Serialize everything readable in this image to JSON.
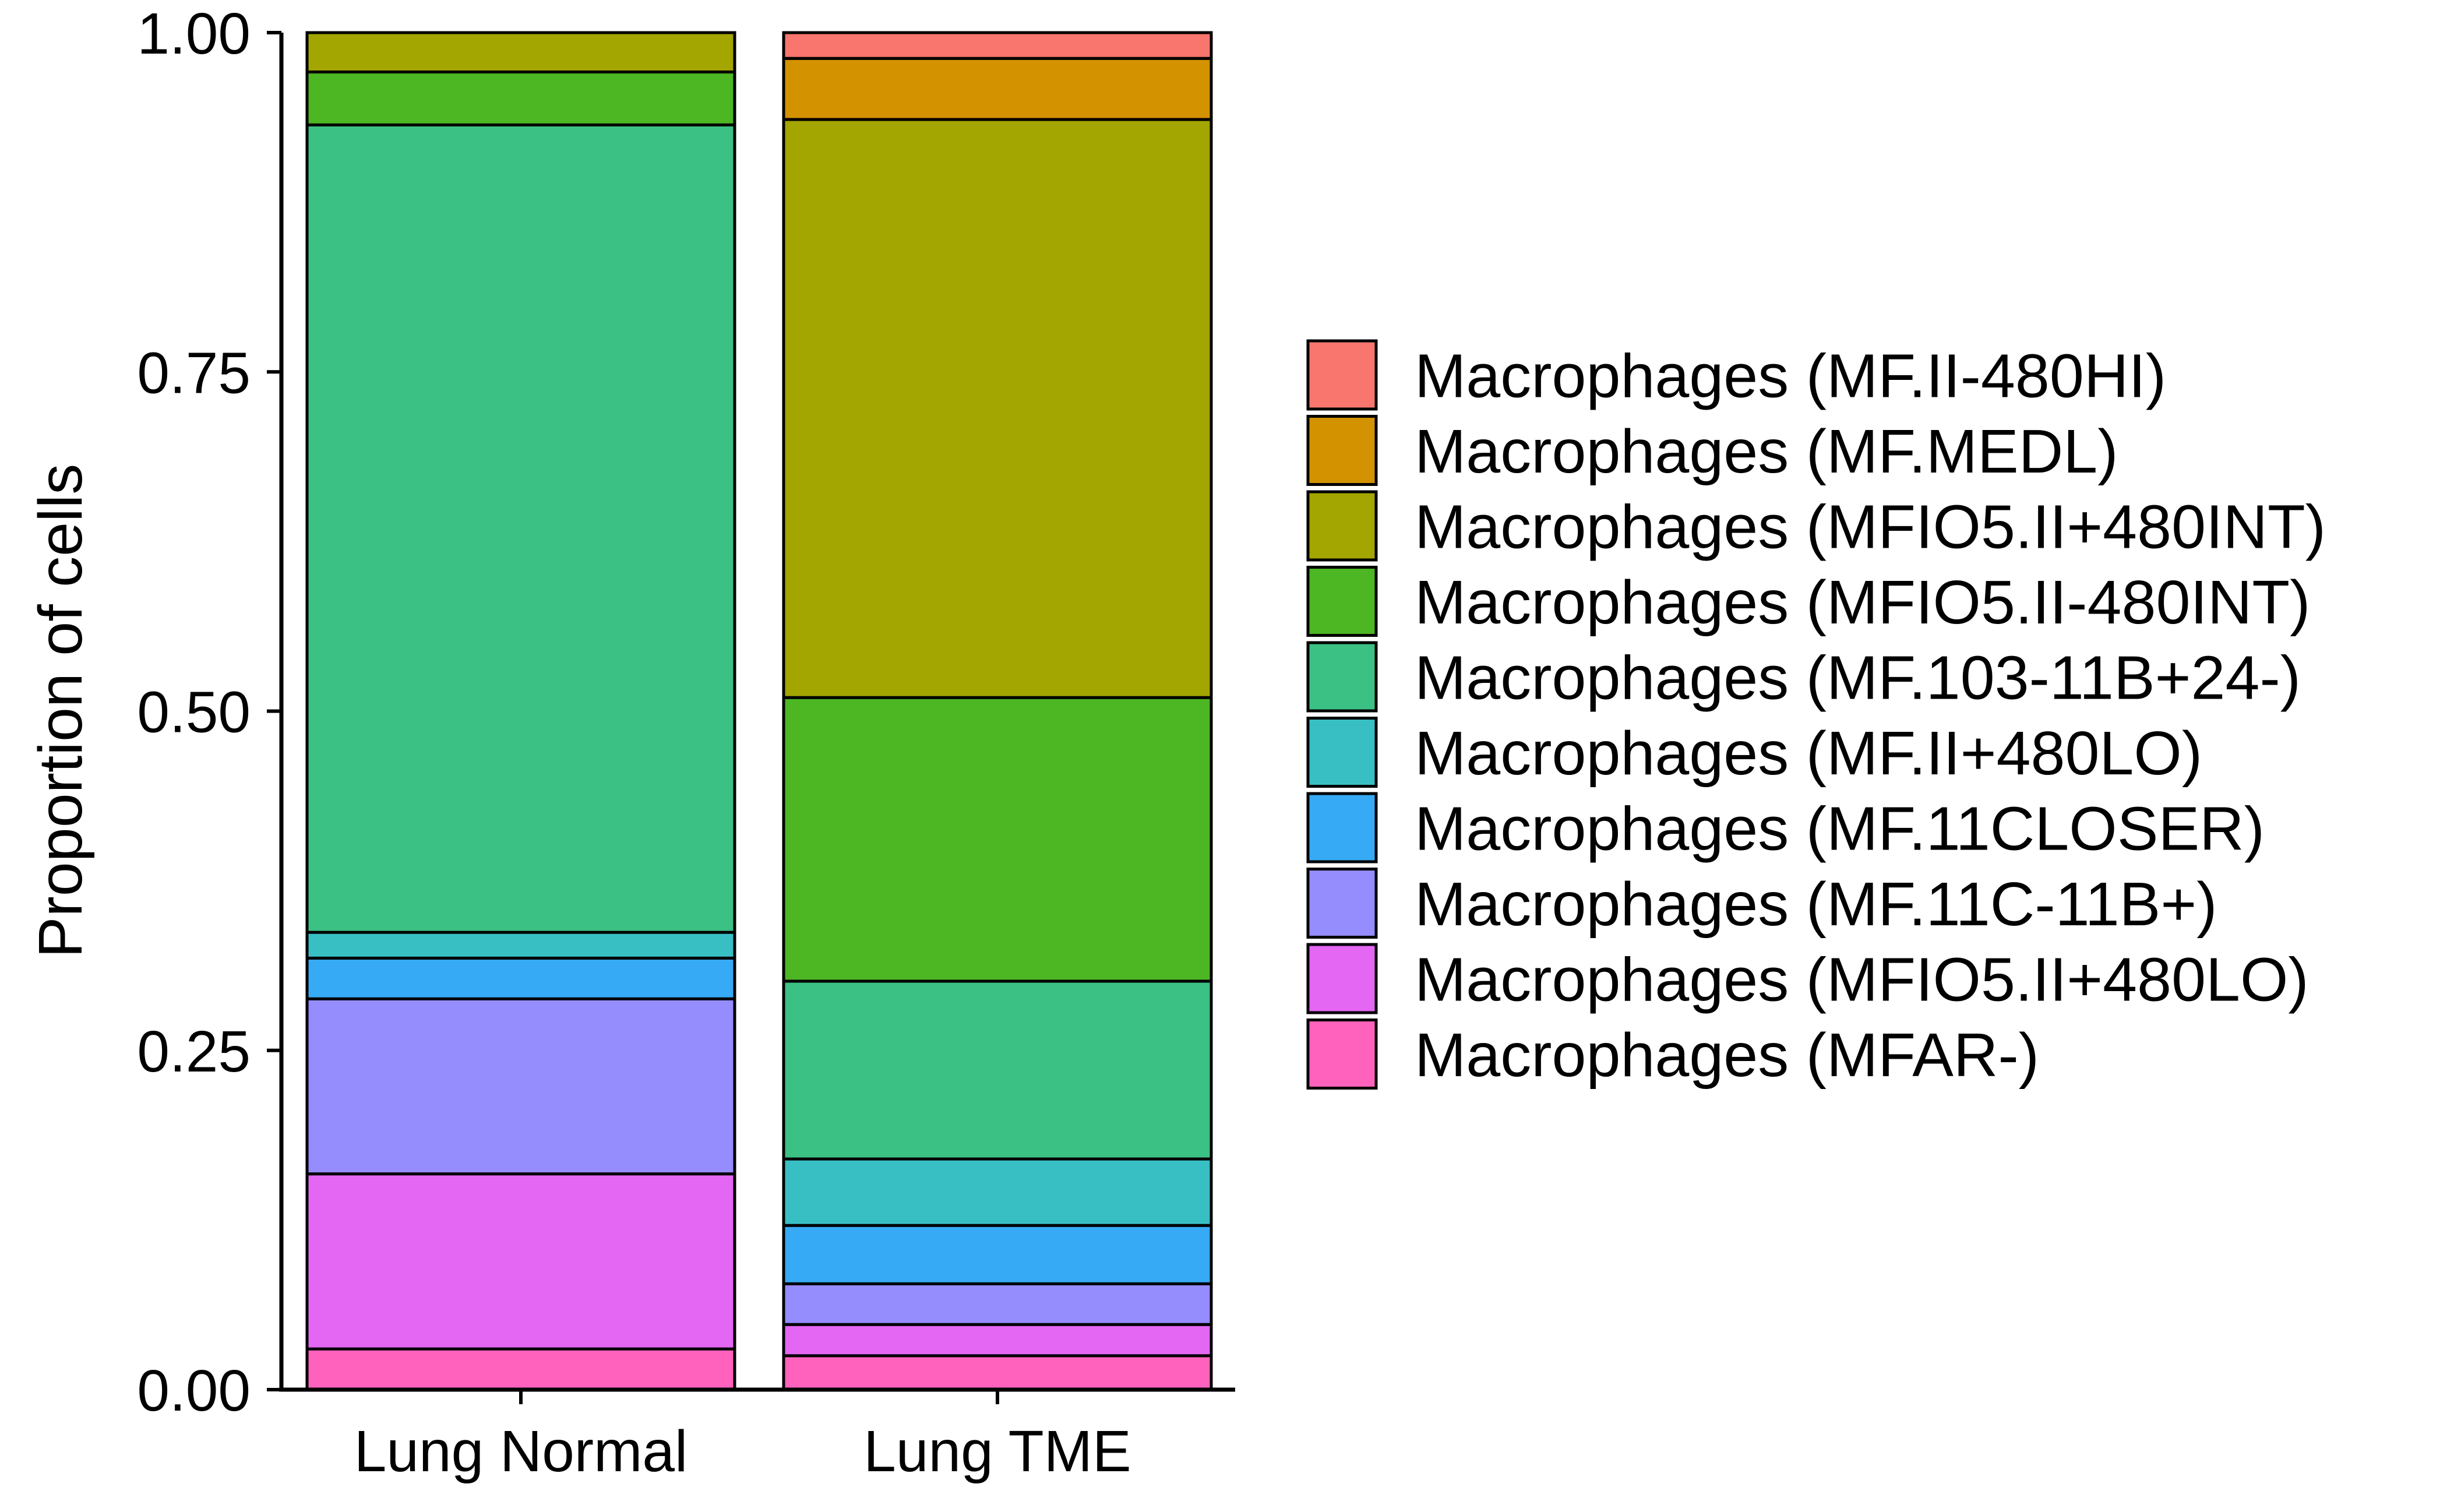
{
  "chart_data": {
    "type": "bar",
    "stacked": true,
    "normalized": true,
    "title": "",
    "xlabel": "",
    "ylabel": "Proportion of cells",
    "ylim": [
      0,
      1
    ],
    "yticks": [
      "0.00",
      "0.25",
      "0.50",
      "0.75",
      "1.00"
    ],
    "grid": false,
    "legend_position": "right",
    "categories": [
      "Lung Normal",
      "Lung TME"
    ],
    "series": [
      {
        "name": "Macrophages (MF.II-480HI)",
        "color": "#F8766D",
        "values": [
          0.0,
          0.019
        ]
      },
      {
        "name": "Macrophages (MF.MEDL)",
        "color": "#D39200",
        "values": [
          0.0,
          0.045
        ]
      },
      {
        "name": "Macrophages (MFIO5.II+480INT)",
        "color": "#A3A500",
        "values": [
          0.029,
          0.426
        ]
      },
      {
        "name": "Macrophages (MFIO5.II-480INT)",
        "color": "#4DB623",
        "values": [
          0.039,
          0.209
        ]
      },
      {
        "name": "Macrophages (MF.103-11B+24-)",
        "color": "#3CC184",
        "values": [
          0.595,
          0.131
        ]
      },
      {
        "name": "Macrophages (MF.II+480LO)",
        "color": "#38BFC4",
        "values": [
          0.019,
          0.049
        ]
      },
      {
        "name": "Macrophages (MF.11CLOSER)",
        "color": "#36AAF5",
        "values": [
          0.03,
          0.043
        ]
      },
      {
        "name": "Macrophages (MF.11C-11B+)",
        "color": "#958CFE",
        "values": [
          0.129,
          0.03
        ]
      },
      {
        "name": "Macrophages (MFIO5.II+480LO)",
        "color": "#E367F3",
        "values": [
          0.129,
          0.023
        ]
      },
      {
        "name": "Macrophages (MFAR-)",
        "color": "#FF62BC",
        "values": [
          0.03,
          0.025
        ]
      }
    ]
  }
}
